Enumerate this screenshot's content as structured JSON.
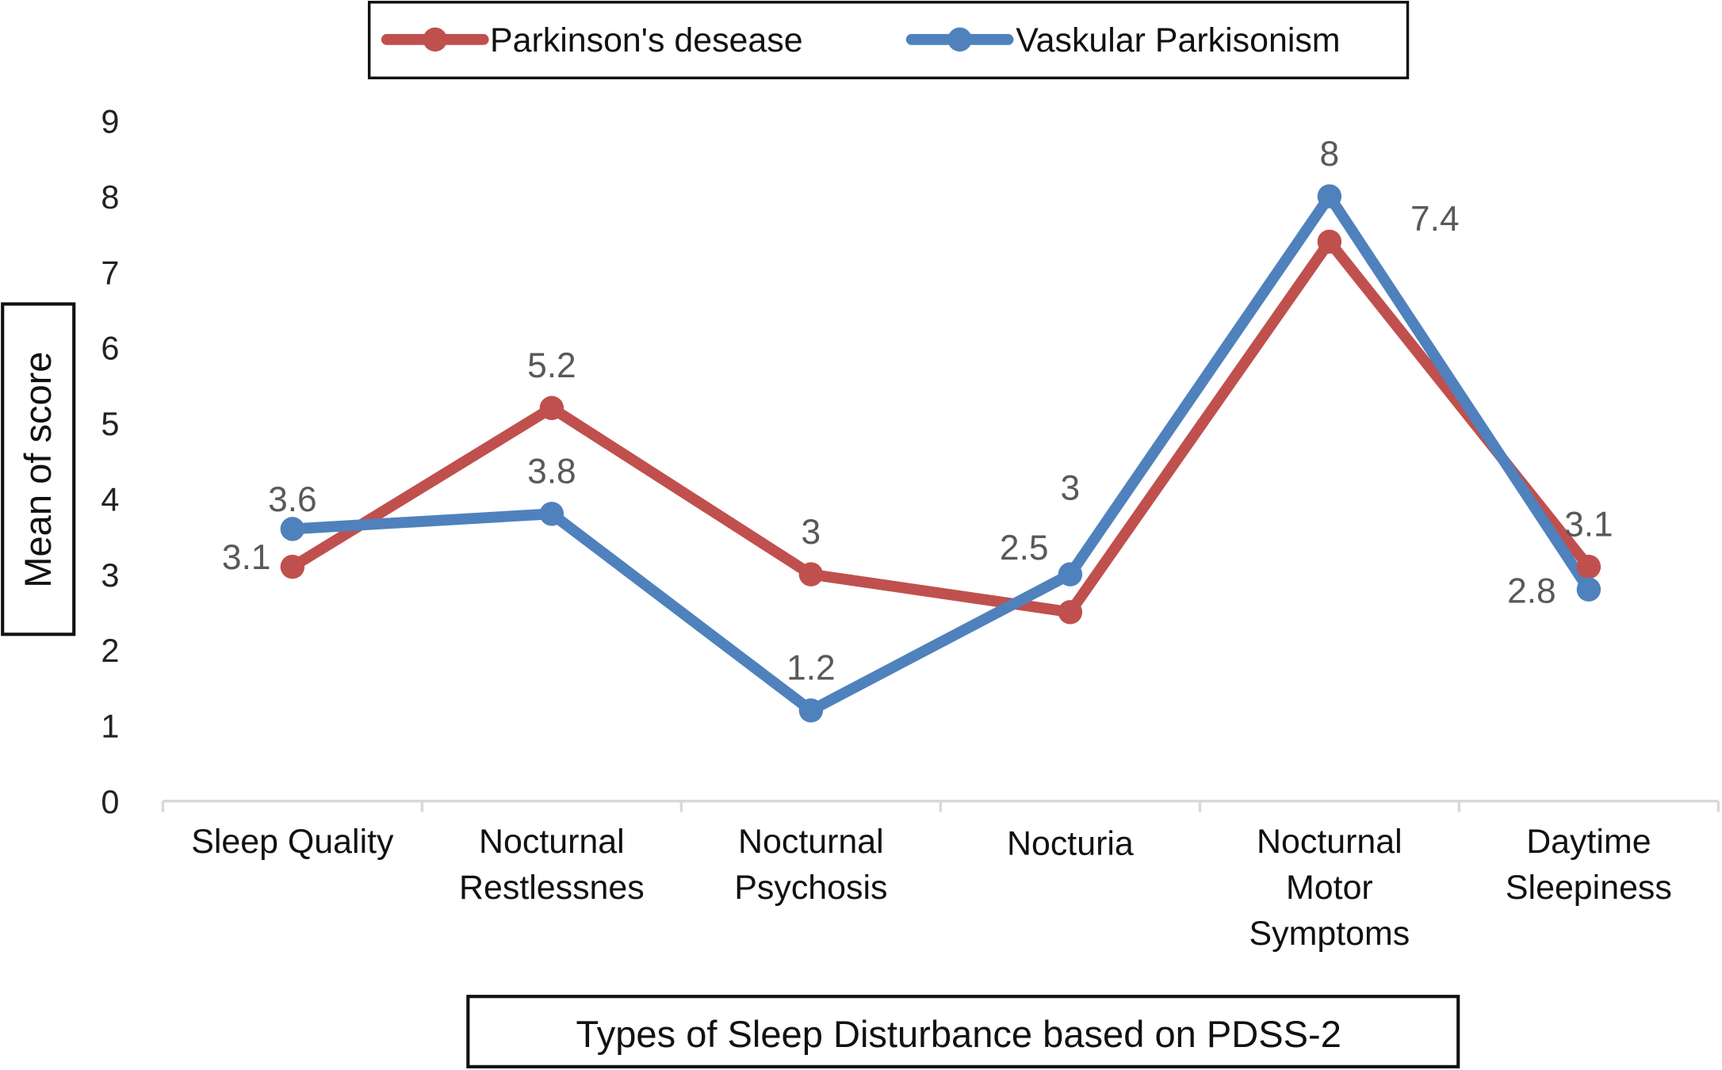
{
  "chart_data": {
    "type": "line",
    "title": "",
    "xlabel": "Types of Sleep Disturbance based on PDSS-2",
    "ylabel": "Mean of score",
    "ylim": [
      0,
      9
    ],
    "yticks": [
      "0",
      "1",
      "2",
      "3",
      "4",
      "5",
      "6",
      "7",
      "8",
      "9"
    ],
    "grid": false,
    "legend_position": "top",
    "categories": [
      [
        "Sleep Quality"
      ],
      [
        "Nocturnal",
        "Restlessnes"
      ],
      [
        "Nocturnal",
        "Psychosis"
      ],
      [
        "Nocturia"
      ],
      [
        "Nocturnal",
        "Motor",
        "Symptoms"
      ],
      [
        "Daytime",
        "Sleepiness"
      ]
    ],
    "series": [
      {
        "name": "Parkinson's desease",
        "color": "#c0504d",
        "values": [
          3.1,
          5.2,
          3,
          2.5,
          7.4,
          3.1
        ],
        "labels": [
          "3.1",
          "5.2",
          "3",
          "2.5",
          "7.4",
          "3.1"
        ]
      },
      {
        "name": "Vaskular Parkisonism",
        "color": "#4f81bd",
        "values": [
          3.6,
          3.8,
          1.2,
          3,
          8,
          2.8
        ],
        "labels": [
          "3.6",
          "3.8",
          "1.2",
          "3",
          "8",
          "2.8"
        ]
      }
    ]
  }
}
